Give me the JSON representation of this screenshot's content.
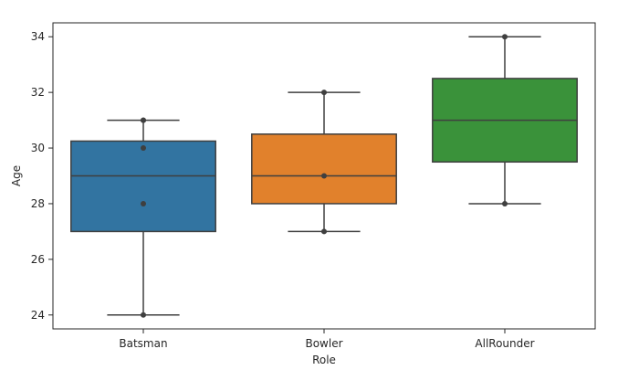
{
  "chart_data": {
    "type": "box",
    "title": "",
    "xlabel": "Role",
    "ylabel": "Age",
    "ylim": [
      23.5,
      34.5
    ],
    "yticks": [
      24,
      26,
      28,
      30,
      32,
      34
    ],
    "grid": false,
    "categories": [
      "Batsman",
      "Bowler",
      "AllRounder"
    ],
    "boxes": [
      {
        "category": "Batsman",
        "whisker_low": 24,
        "q1": 27,
        "median": 29,
        "q3": 30.25,
        "whisker_high": 31,
        "points": [
          24,
          28,
          30,
          31,
          31
        ],
        "color": "#3274a1"
      },
      {
        "category": "Bowler",
        "whisker_low": 27,
        "q1": 28,
        "median": 29,
        "q3": 30.5,
        "whisker_high": 32,
        "points": [
          27,
          29,
          32
        ],
        "color": "#e1812c"
      },
      {
        "category": "AllRounder",
        "whisker_low": 28,
        "q1": 29.5,
        "median": 31,
        "q3": 32.5,
        "whisker_high": 34,
        "points": [
          28,
          34
        ],
        "color": "#3a923a"
      }
    ]
  }
}
